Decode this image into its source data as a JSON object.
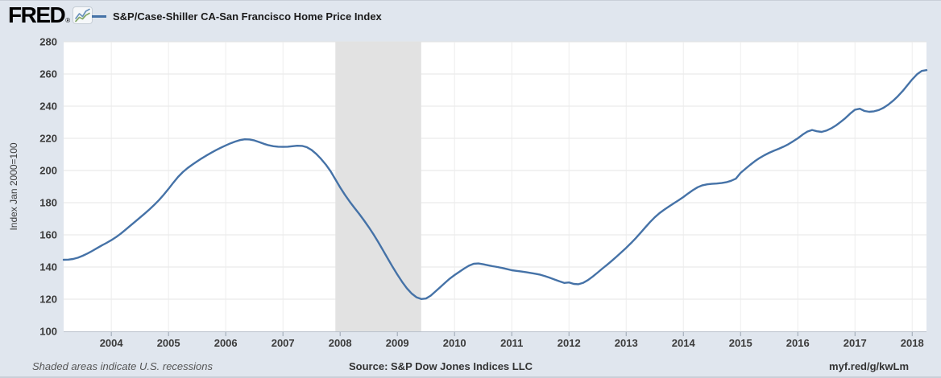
{
  "header": {
    "logo_text": "FRED",
    "registered": "®",
    "series_title": "S&P/Case-Shiller CA-San Francisco Home Price Index"
  },
  "footer": {
    "note": "Shaded areas indicate U.S. recessions",
    "source": "Source: S&P Dow Jones Indices LLC",
    "short_url": "myf.red/g/kwLm"
  },
  "colors": {
    "page_bg": "#e0e6ee",
    "plot_bg": "#ffffff",
    "line": "#4572a7",
    "recession": "#e2e2e2",
    "gridline": "#e4e4e4",
    "year_gridline": "#ededed",
    "axis_line": "#b9c1cb",
    "tick": "#9aa5b2",
    "tick_label": "#3b3b3b",
    "axis_title": "#3c3c3c"
  },
  "chart_data": {
    "type": "line",
    "title": "S&P/Case-Shiller CA-San Francisco Home Price Index",
    "xlabel": "",
    "ylabel": "Index Jan 2000=100",
    "ylim": [
      100,
      280
    ],
    "y_ticks": [
      100,
      120,
      140,
      160,
      180,
      200,
      220,
      240,
      260,
      280
    ],
    "x_ticks": [
      2004,
      2005,
      2006,
      2007,
      2008,
      2009,
      2010,
      2011,
      2012,
      2013,
      2014,
      2015,
      2016,
      2017,
      2018
    ],
    "frequency": "monthly",
    "x_start": "2003-03",
    "x_end": "2018-04",
    "grid": "on",
    "legend_position": "top-left",
    "recessions": [
      {
        "start": "2007-12",
        "end": "2009-06"
      }
    ],
    "series": [
      {
        "name": "S&P/Case-Shiller CA-San Francisco Home Price Index",
        "color": "#4572a7",
        "values": [
          144.5,
          144.6,
          145.0,
          145.8,
          147.0,
          148.4,
          150.0,
          151.7,
          153.4,
          155.0,
          156.7,
          158.6,
          160.8,
          163.2,
          165.7,
          168.2,
          170.7,
          173.2,
          175.8,
          178.6,
          181.6,
          185.0,
          188.6,
          192.4,
          196.0,
          199.0,
          201.5,
          203.7,
          205.7,
          207.6,
          209.4,
          211.1,
          212.7,
          214.2,
          215.6,
          216.9,
          218.0,
          218.9,
          219.4,
          219.3,
          218.7,
          217.7,
          216.6,
          215.7,
          215.1,
          214.8,
          214.7,
          214.8,
          215.1,
          215.4,
          215.3,
          214.5,
          212.8,
          210.3,
          207.2,
          203.7,
          199.5,
          194.5,
          189.5,
          184.9,
          180.7,
          176.8,
          173.0,
          169.0,
          164.8,
          160.3,
          155.5,
          150.4,
          145.2,
          140.1,
          135.3,
          130.8,
          126.8,
          123.5,
          121.2,
          120.1,
          120.4,
          122.2,
          124.8,
          127.5,
          130.2,
          132.8,
          135.0,
          137.0,
          139.0,
          140.8,
          142.0,
          142.2,
          141.7,
          141.1,
          140.5,
          140.0,
          139.4,
          138.7,
          138.0,
          137.6,
          137.2,
          136.8,
          136.3,
          135.8,
          135.2,
          134.3,
          133.3,
          132.2,
          131.1,
          130.1,
          130.4,
          129.5,
          129.3,
          130.2,
          131.9,
          134.1,
          136.5,
          139.0,
          141.4,
          143.9,
          146.5,
          149.2,
          151.9,
          154.8,
          157.9,
          161.2,
          164.6,
          167.9,
          170.9,
          173.5,
          175.7,
          177.7,
          179.6,
          181.5,
          183.5,
          185.7,
          187.8,
          189.6,
          190.8,
          191.4,
          191.7,
          191.9,
          192.2,
          192.7,
          193.6,
          194.9,
          198.5,
          201.0,
          203.5,
          205.8,
          207.8,
          209.5,
          211.0,
          212.3,
          213.5,
          214.8,
          216.3,
          218.1,
          220.0,
          222.3,
          224.2,
          225.2,
          224.4,
          224.0,
          224.8,
          226.2,
          228.0,
          230.2,
          232.6,
          235.4,
          237.8,
          238.4,
          237.0,
          236.5,
          236.8,
          237.6,
          239.0,
          241.0,
          243.4,
          246.2,
          249.4,
          253.0,
          256.6,
          259.8,
          261.9,
          262.4
        ]
      }
    ]
  }
}
